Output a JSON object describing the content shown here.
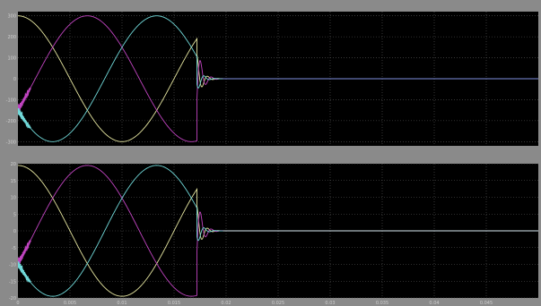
{
  "chart_data": [
    {
      "type": "line",
      "title": "",
      "xlabel": "",
      "ylabel": "",
      "xlim": [
        0,
        0.05
      ],
      "ylim": [
        -320,
        320
      ],
      "grid": true,
      "background": "#000000",
      "y_ticks": [
        "300",
        "200",
        "100",
        "0",
        "-100",
        "-200",
        "-300"
      ],
      "y_tick_values": [
        300,
        200,
        100,
        0,
        -100,
        -200,
        -300
      ],
      "x_ticks": [],
      "x_tick_values": [],
      "series": [
        {
          "color": "#e6e6a0",
          "amplitude": 300,
          "phase_deg": 90,
          "active_until": 0.0172
        },
        {
          "color": "#c044c0",
          "amplitude": 300,
          "phase_deg": -30,
          "active_until": 0.0172
        },
        {
          "color": "#70d8d8",
          "amplitude": 300,
          "phase_deg": -150,
          "active_until": 0.0172
        }
      ],
      "freq_hz": 50,
      "post_value": 0,
      "post_color": "#7f8fe0"
    },
    {
      "type": "line",
      "title": "",
      "xlabel": "",
      "ylabel": "",
      "xlim": [
        0,
        0.05
      ],
      "ylim": [
        -20,
        20
      ],
      "grid": true,
      "background": "#000000",
      "y_ticks": [
        "20",
        "15",
        "10",
        "5",
        "0",
        "-5",
        "-10",
        "-15",
        "-20"
      ],
      "y_tick_values": [
        20,
        15,
        10,
        5,
        0,
        -5,
        -10,
        -15,
        -20
      ],
      "x_ticks": [
        "0",
        "0.005",
        "0.01",
        "0.015",
        "0.02",
        "0.025",
        "0.03",
        "0.035",
        "0.04",
        "0.045"
      ],
      "x_tick_values": [
        0,
        0.005,
        0.01,
        0.015,
        0.02,
        0.025,
        0.03,
        0.035,
        0.04,
        0.045
      ],
      "series": [
        {
          "color": "#e6e6a0",
          "amplitude": 19.5,
          "phase_deg": 90,
          "active_until": 0.0172
        },
        {
          "color": "#c044c0",
          "amplitude": 19.5,
          "phase_deg": -30,
          "active_until": 0.0172
        },
        {
          "color": "#70d8d8",
          "amplitude": 19.5,
          "phase_deg": -150,
          "active_until": 0.0172
        }
      ],
      "freq_hz": 50,
      "post_value": 0,
      "post_color": "#d8e8f0"
    }
  ]
}
